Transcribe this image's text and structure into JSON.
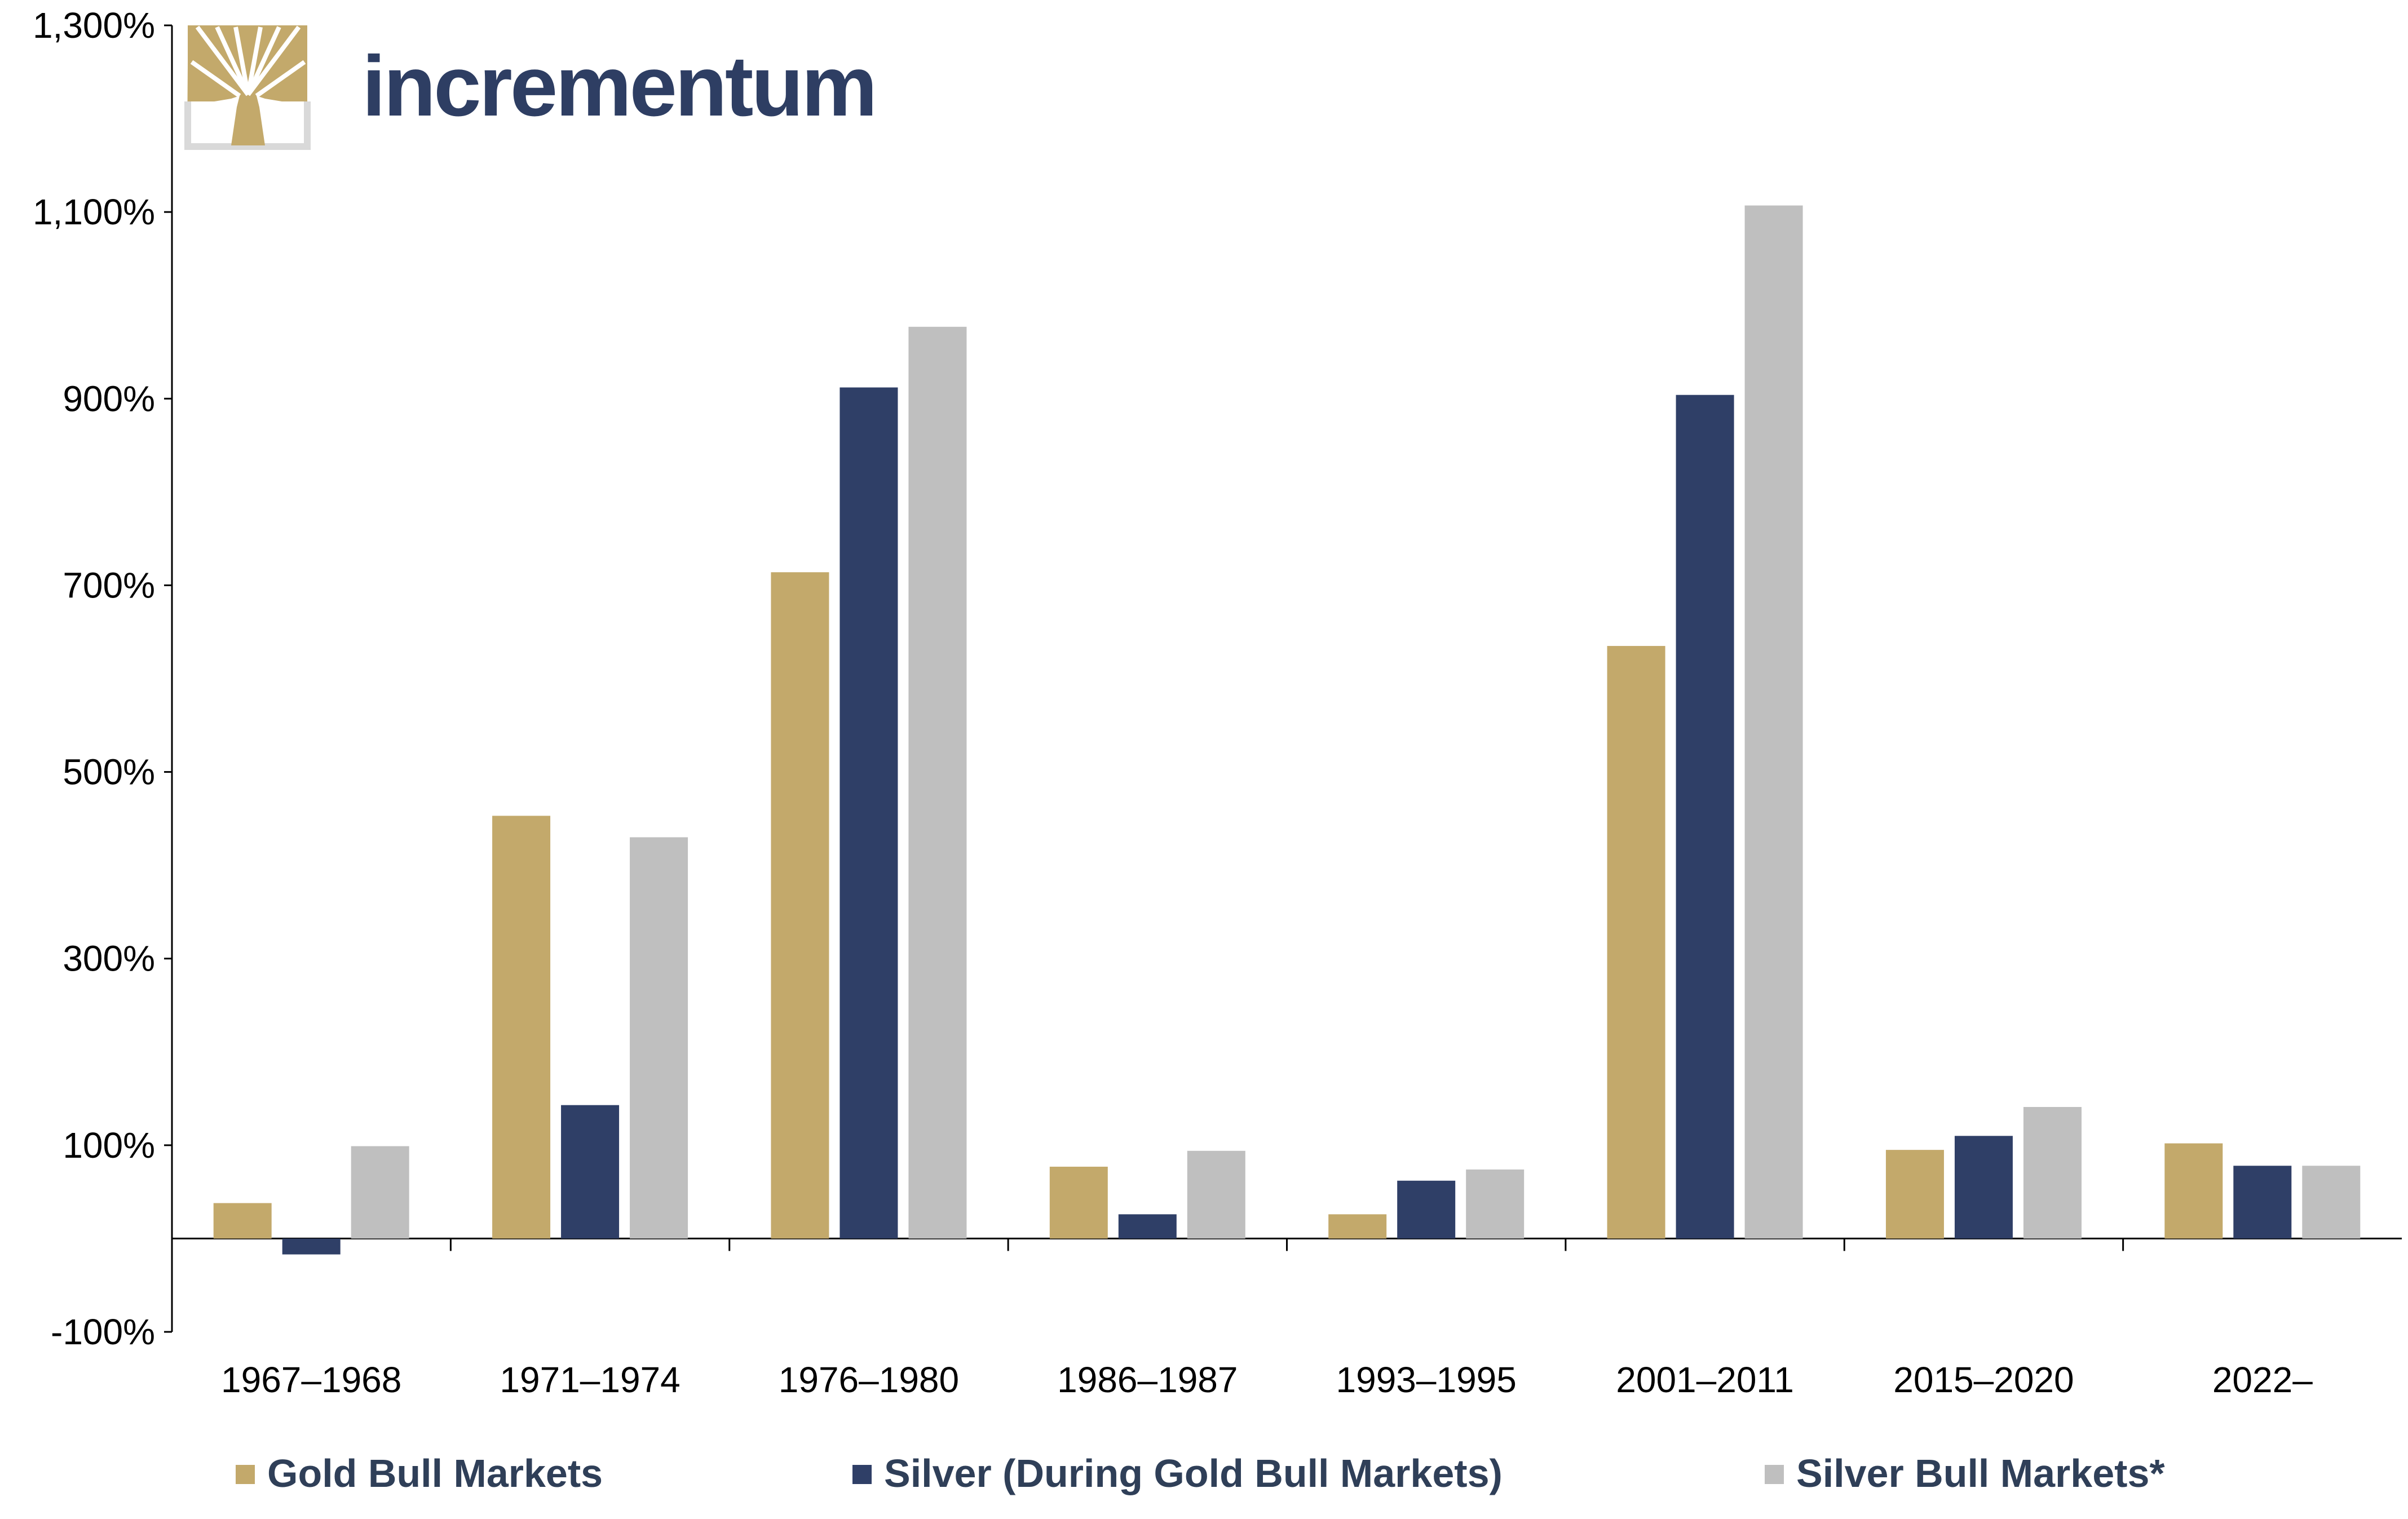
{
  "logo": {
    "text": "incrementum"
  },
  "colors": {
    "gold": "#c3a96b",
    "silver_gold": "#2f3f67",
    "silver_bull": "#bfbfbf",
    "axis": "#000000",
    "logo_text": "#2e3e63",
    "legend_text": "#2f3f58"
  },
  "chart_data": {
    "type": "bar",
    "title": "",
    "xlabel": "",
    "ylabel": "",
    "ylim": [
      -100,
      1300
    ],
    "yticks": [
      -100,
      100,
      300,
      500,
      700,
      900,
      1100,
      1300
    ],
    "ytick_labels": [
      "-100%",
      "100%",
      "300%",
      "500%",
      "700%",
      "900%",
      "1,100%",
      "1,300%"
    ],
    "categories": [
      "1967–1968",
      "1971–1974",
      "1976–1980",
      "1986–1987",
      "1993–1995",
      "2001–2011",
      "2015–2020",
      "2022–"
    ],
    "series": [
      {
        "name": "Gold Bull Markets",
        "color": "#c3a96b",
        "values": [
          38,
          453,
          714,
          77,
          26,
          635,
          95,
          102
        ]
      },
      {
        "name": "Silver (During Gold Bull Markets)",
        "color": "#2f3f67",
        "values": [
          -17,
          143,
          912,
          26,
          62,
          904,
          110,
          78
        ]
      },
      {
        "name": "Silver Bull Markets*",
        "color": "#bfbfbf",
        "values": [
          99,
          430,
          977,
          94,
          74,
          1107,
          141,
          78
        ]
      }
    ],
    "grid": false,
    "legend": "bottom"
  }
}
